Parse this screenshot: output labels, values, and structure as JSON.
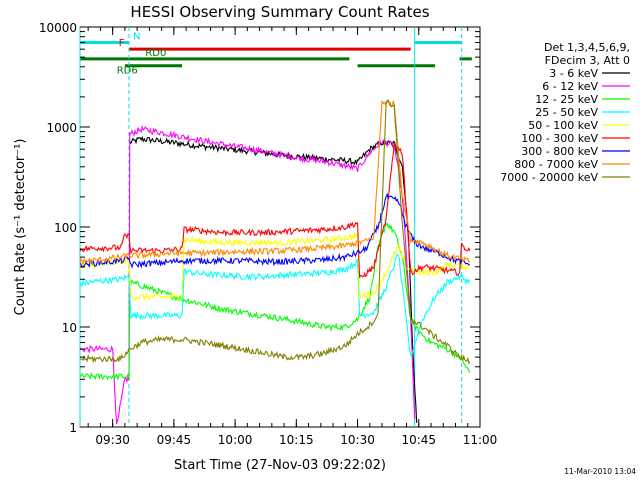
{
  "chart_data": {
    "type": "line",
    "title": "HESSI Observing Summary Count Rates",
    "xlabel": "Start Time (27-Nov-03 09:22:02)",
    "ylabel": "Count Rate (s⁻¹ detector⁻¹)",
    "footer_date": "11-Mar-2010 13:04",
    "x_unit": "minutes after 09:22:02",
    "xlim": [
      0,
      98
    ],
    "ylim": [
      1,
      10000
    ],
    "y_scale": "log",
    "grid": false,
    "legend_position": "right",
    "legend_header": [
      "Det 1,3,4,5,6,9,",
      "FDecim 3, Att 0"
    ],
    "x_ticks": [
      {
        "x": 8,
        "label": "09:30"
      },
      {
        "x": 23,
        "label": "09:45"
      },
      {
        "x": 38,
        "label": "10:00"
      },
      {
        "x": 53,
        "label": "10:15"
      },
      {
        "x": 68,
        "label": "10:30"
      },
      {
        "x": 83,
        "label": "10:45"
      },
      {
        "x": 98,
        "label": "11:00"
      }
    ],
    "y_ticks": [
      {
        "y": 1,
        "label": "1"
      },
      {
        "y": 10,
        "label": "10"
      },
      {
        "y": 100,
        "label": "100"
      },
      {
        "y": 1000,
        "label": "1000"
      },
      {
        "y": 10000,
        "label": "10000"
      }
    ],
    "markers": [
      {
        "x": 0,
        "label": ""
      },
      {
        "x": 12,
        "label": ""
      },
      {
        "x": 82,
        "label": ""
      },
      {
        "x": 93.5,
        "label": ""
      }
    ],
    "flags": [
      {
        "name": "N",
        "color": "#00e0e0",
        "level": 7000,
        "segments": [
          [
            0,
            12
          ],
          [
            82,
            93.5
          ]
        ],
        "label_x": 13
      },
      {
        "name": "F",
        "color": "#e00000",
        "level": 6000,
        "segments": [
          [
            12,
            81
          ]
        ],
        "label_x": 9.5
      },
      {
        "name": "RD0",
        "color": "#007700",
        "level": 4800,
        "segments": [
          [
            0,
            66
          ],
          [
            93,
            96
          ]
        ],
        "label_x": 16
      },
      {
        "name": "RD6",
        "color": "#007700",
        "level": 4100,
        "segments": [
          [
            11,
            25
          ],
          [
            68,
            87
          ]
        ],
        "label_x": 9
      }
    ],
    "series": [
      {
        "name": "3 - 6 keV",
        "color": "#000000",
        "points": [
          [
            12.2,
            700
          ],
          [
            15,
            760
          ],
          [
            20,
            720
          ],
          [
            25,
            680
          ],
          [
            30,
            640
          ],
          [
            35,
            610
          ],
          [
            40,
            580
          ],
          [
            45,
            550
          ],
          [
            50,
            520
          ],
          [
            55,
            500
          ],
          [
            60,
            480
          ],
          [
            65,
            460
          ],
          [
            68,
            440
          ],
          [
            71,
            600
          ],
          [
            74,
            700
          ],
          [
            77,
            680
          ],
          [
            79,
            400
          ],
          [
            80.5,
            80
          ],
          [
            81.5,
            6
          ],
          [
            82.5,
            1.1
          ]
        ]
      },
      {
        "name": "6 - 12 keV",
        "color": "#ff00ff",
        "points": [
          [
            0,
            6
          ],
          [
            8,
            6
          ],
          [
            9,
            1
          ],
          [
            11,
            3
          ],
          [
            12,
            3
          ],
          [
            12.2,
            850
          ],
          [
            15,
            950
          ],
          [
            20,
            880
          ],
          [
            25,
            800
          ],
          [
            30,
            730
          ],
          [
            35,
            670
          ],
          [
            40,
            620
          ],
          [
            45,
            570
          ],
          [
            50,
            520
          ],
          [
            55,
            480
          ],
          [
            60,
            450
          ],
          [
            65,
            410
          ],
          [
            68,
            380
          ],
          [
            71,
            550
          ],
          [
            74,
            720
          ],
          [
            77,
            650
          ],
          [
            79,
            200
          ],
          [
            81,
            12
          ],
          [
            82,
            1.2
          ]
        ]
      },
      {
        "name": "12 - 25 keV",
        "color": "#00ff00",
        "points": [
          [
            0,
            3.2
          ],
          [
            12,
            3.2
          ],
          [
            12.2,
            28
          ],
          [
            15,
            26
          ],
          [
            20,
            22
          ],
          [
            25,
            19
          ],
          [
            30,
            17
          ],
          [
            35,
            15
          ],
          [
            40,
            14
          ],
          [
            45,
            13
          ],
          [
            50,
            12
          ],
          [
            55,
            11
          ],
          [
            60,
            10
          ],
          [
            65,
            10
          ],
          [
            68,
            12
          ],
          [
            71,
            20
          ],
          [
            73,
            60
          ],
          [
            75,
            110
          ],
          [
            77,
            90
          ],
          [
            79,
            50
          ],
          [
            81,
            12
          ],
          [
            83,
            9
          ],
          [
            86,
            7
          ],
          [
            90,
            6
          ],
          [
            93,
            5
          ],
          [
            95.5,
            3.5
          ]
        ]
      },
      {
        "name": "25 - 50 keV",
        "color": "#00ffff",
        "points": [
          [
            0,
            27
          ],
          [
            5,
            29
          ],
          [
            10,
            30
          ],
          [
            12,
            32
          ],
          [
            12.5,
            13
          ],
          [
            20,
            13
          ],
          [
            25,
            13
          ],
          [
            25.5,
            36
          ],
          [
            30,
            34
          ],
          [
            35,
            33
          ],
          [
            40,
            32
          ],
          [
            45,
            32
          ],
          [
            50,
            33
          ],
          [
            55,
            34
          ],
          [
            60,
            35
          ],
          [
            65,
            38
          ],
          [
            68,
            45
          ],
          [
            68.5,
            13
          ],
          [
            72,
            14
          ],
          [
            75,
            25
          ],
          [
            78,
            55
          ],
          [
            81,
            5
          ],
          [
            84,
            12
          ],
          [
            87,
            20
          ],
          [
            90,
            28
          ],
          [
            93,
            32
          ],
          [
            95.5,
            28
          ]
        ]
      },
      {
        "name": "50 - 100 keV",
        "color": "#ffff00",
        "points": [
          [
            0,
            40
          ],
          [
            5,
            42
          ],
          [
            10,
            45
          ],
          [
            12,
            46
          ],
          [
            12.5,
            20
          ],
          [
            20,
            20
          ],
          [
            25,
            20
          ],
          [
            25.5,
            75
          ],
          [
            30,
            72
          ],
          [
            35,
            70
          ],
          [
            40,
            70
          ],
          [
            45,
            70
          ],
          [
            50,
            70
          ],
          [
            55,
            72
          ],
          [
            60,
            74
          ],
          [
            65,
            78
          ],
          [
            68,
            82
          ],
          [
            68.5,
            20
          ],
          [
            72,
            22
          ],
          [
            75,
            35
          ],
          [
            78,
            65
          ],
          [
            80,
            40
          ],
          [
            83,
            35
          ],
          [
            87,
            35
          ],
          [
            90,
            42
          ],
          [
            95.5,
            40
          ]
        ]
      },
      {
        "name": "100 - 300 keV",
        "color": "#ff0000",
        "points": [
          [
            0,
            60
          ],
          [
            5,
            62
          ],
          [
            10,
            62
          ],
          [
            11,
            82
          ],
          [
            12,
            80
          ],
          [
            12.5,
            58
          ],
          [
            20,
            58
          ],
          [
            25,
            60
          ],
          [
            25.5,
            95
          ],
          [
            30,
            92
          ],
          [
            35,
            88
          ],
          [
            40,
            88
          ],
          [
            45,
            88
          ],
          [
            50,
            90
          ],
          [
            55,
            92
          ],
          [
            60,
            95
          ],
          [
            65,
            100
          ],
          [
            68,
            110
          ],
          [
            68.5,
            30
          ],
          [
            72,
            40
          ],
          [
            75,
            120
          ],
          [
            77,
            680
          ],
          [
            79,
            550
          ],
          [
            81,
            35
          ],
          [
            84,
            40
          ],
          [
            88,
            38
          ],
          [
            91,
            36
          ],
          [
            93,
            35
          ],
          [
            93.5,
            65
          ],
          [
            95.5,
            58
          ]
        ]
      },
      {
        "name": "300 - 800 keV",
        "color": "#0000ff",
        "points": [
          [
            0,
            42
          ],
          [
            5,
            44
          ],
          [
            10,
            46
          ],
          [
            12,
            48
          ],
          [
            12.5,
            42
          ],
          [
            20,
            44
          ],
          [
            25,
            46
          ],
          [
            25.5,
            46
          ],
          [
            30,
            46
          ],
          [
            35,
            46
          ],
          [
            40,
            46
          ],
          [
            45,
            45
          ],
          [
            50,
            45
          ],
          [
            55,
            46
          ],
          [
            60,
            47
          ],
          [
            65,
            50
          ],
          [
            68,
            55
          ],
          [
            70,
            60
          ],
          [
            73,
            100
          ],
          [
            75,
            200
          ],
          [
            78,
            180
          ],
          [
            80,
            100
          ],
          [
            82,
            70
          ],
          [
            85,
            60
          ],
          [
            88,
            55
          ],
          [
            91,
            48
          ],
          [
            95.5,
            42
          ]
        ]
      },
      {
        "name": "800 - 7000 keV",
        "color": "#ff8800",
        "points": [
          [
            0,
            45
          ],
          [
            5,
            47
          ],
          [
            10,
            50
          ],
          [
            12,
            52
          ],
          [
            15,
            52
          ],
          [
            20,
            54
          ],
          [
            25,
            55
          ],
          [
            30,
            55
          ],
          [
            35,
            56
          ],
          [
            40,
            57
          ],
          [
            45,
            57
          ],
          [
            50,
            58
          ],
          [
            55,
            60
          ],
          [
            60,
            62
          ],
          [
            65,
            65
          ],
          [
            68,
            70
          ],
          [
            70,
            72
          ],
          [
            72,
            80
          ],
          [
            74,
            1800
          ],
          [
            77,
            1700
          ],
          [
            79,
            200
          ],
          [
            81,
            75
          ],
          [
            84,
            70
          ],
          [
            87,
            60
          ],
          [
            90,
            52
          ],
          [
            93,
            48
          ],
          [
            95.5,
            45
          ]
        ]
      },
      {
        "name": "7000 - 20000 keV",
        "color": "#808000",
        "points": [
          [
            0,
            4.8
          ],
          [
            10,
            4.8
          ],
          [
            12.2,
            6
          ],
          [
            15,
            7
          ],
          [
            20,
            7.5
          ],
          [
            25,
            7.5
          ],
          [
            30,
            7
          ],
          [
            35,
            6.5
          ],
          [
            40,
            6
          ],
          [
            45,
            5.5
          ],
          [
            50,
            5
          ],
          [
            55,
            5
          ],
          [
            60,
            5.5
          ],
          [
            65,
            6.5
          ],
          [
            68,
            8.5
          ],
          [
            71,
            10.5
          ],
          [
            73,
            13
          ],
          [
            75,
            1800
          ],
          [
            77,
            1600
          ],
          [
            79,
            100
          ],
          [
            81,
            12
          ],
          [
            84,
            10
          ],
          [
            87,
            8
          ],
          [
            90,
            6.5
          ],
          [
            93,
            5
          ],
          [
            95.5,
            4.5
          ]
        ]
      }
    ]
  }
}
